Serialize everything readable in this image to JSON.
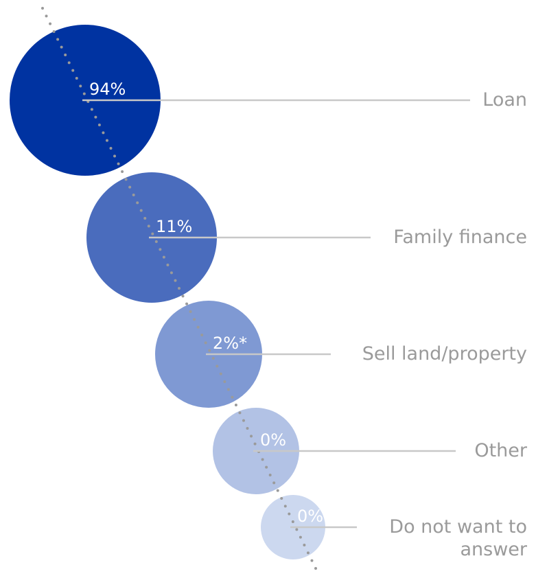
{
  "chart_data": {
    "type": "bubble",
    "categories": [
      "Loan",
      "Family finance",
      "Sell land/property",
      "Other",
      "Do not want to answer"
    ],
    "values": [
      94,
      11,
      2,
      0,
      0
    ],
    "value_labels": [
      "94%",
      "11%",
      "2%*",
      "0%",
      "0%"
    ],
    "colors": [
      "#0033a1",
      "#4a6cbd",
      "#7f99d3",
      "#b2c2e5",
      "#ccd8ef"
    ]
  }
}
